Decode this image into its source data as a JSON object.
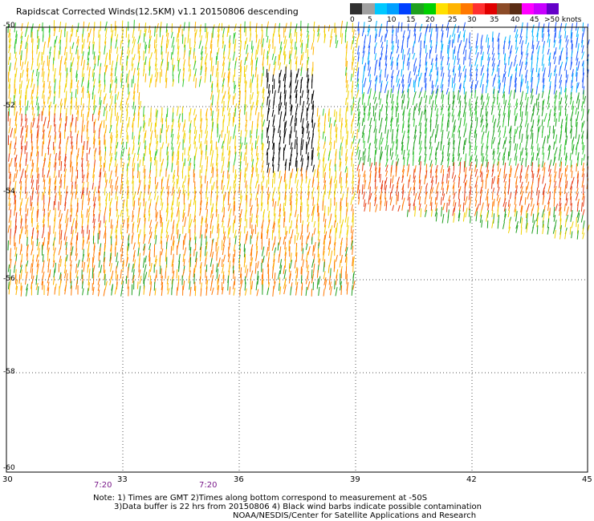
{
  "title": "Rapidscat Corrected Winds(12.5KM) v1.1 20150806 descending",
  "scale": {
    "colors": [
      "#303030",
      "#a0a0a0",
      "#00c8ff",
      "#00a0ff",
      "#0040ff",
      "#1ea01e",
      "#00d000",
      "#ffe000",
      "#ffb400",
      "#ff7800",
      "#ff3030",
      "#e00000",
      "#8c4b28",
      "#5a2d14",
      "#ff00ff",
      "#c800ff",
      "#6400c8"
    ],
    "labels": [
      "0",
      "5",
      "10",
      "15",
      "20",
      "25",
      "30",
      "35",
      "40",
      "45",
      ">50 knots"
    ]
  },
  "axes": {
    "lat_labels": [
      "-50",
      "-52",
      "-54",
      "-56",
      "-58",
      "-60"
    ],
    "lon_labels": [
      "30",
      "33",
      "36",
      "39",
      "42",
      "45"
    ]
  },
  "times": [
    "7:20",
    "7:20"
  ],
  "notes": [
    "Note: 1) Times are GMT 2)Times along bottom correspond to measurement at -50S",
    "3)Data buffer is 22 hrs from 20150806 4) Black wind barbs indicate possible contamination",
    "NOAA/NESDIS/Center for Satellite Applications and Research"
  ]
}
